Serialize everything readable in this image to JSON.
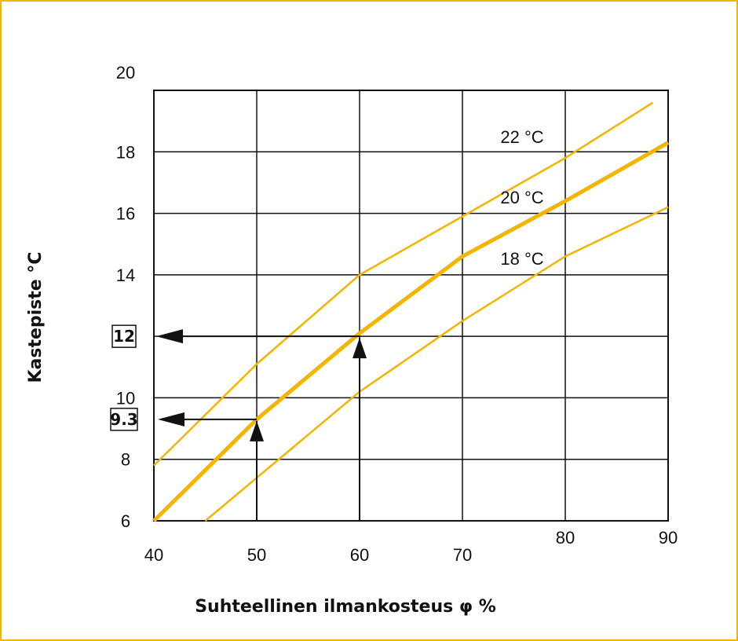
{
  "chart_data": {
    "type": "line",
    "xlabel": "Suhteellinen ilmankosteus φ %",
    "ylabel": "Kastepiste °C",
    "xlim": [
      40,
      90
    ],
    "ylim": [
      6,
      20
    ],
    "x_ticks": [
      40,
      50,
      60,
      70,
      80,
      90
    ],
    "y_ticks": [
      6,
      8,
      10,
      12,
      14,
      16,
      18,
      20
    ],
    "grid": true,
    "colors": {
      "curve": "#f5b400",
      "frame": "#f5b400",
      "grid": "#111111"
    },
    "series": [
      {
        "name": "22 °C",
        "emphasis": false,
        "x": [
          40,
          50,
          60,
          70,
          80,
          88.5
        ],
        "y": [
          7.8,
          11.1,
          14.0,
          15.9,
          17.8,
          19.6
        ]
      },
      {
        "name": "20 °C",
        "emphasis": true,
        "x": [
          40,
          50,
          60,
          70,
          80,
          90
        ],
        "y": [
          6.0,
          9.3,
          12.1,
          14.6,
          16.4,
          18.3
        ]
      },
      {
        "name": "18 °C",
        "emphasis": false,
        "x": [
          45,
          50,
          60,
          70,
          80,
          90
        ],
        "y": [
          6.0,
          7.4,
          10.2,
          12.5,
          14.6,
          16.2
        ]
      }
    ],
    "annotations": [
      {
        "label": "12",
        "x": 60,
        "y": 12
      },
      {
        "label": "9.3",
        "x": 50,
        "y": 9.3
      }
    ]
  }
}
